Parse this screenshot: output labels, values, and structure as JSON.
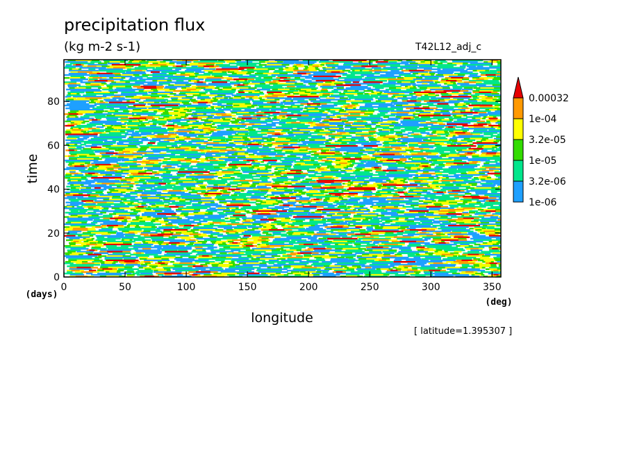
{
  "figure": {
    "title": "precipitation flux",
    "units": "(kg m-2 s-1)",
    "run_id": "T42L12_adj_c",
    "annotation": "[ latitude=1.395307 ]"
  },
  "chart_data": {
    "type": "heatmap",
    "title": "precipitation flux",
    "units": "(kg m-2 s-1)",
    "xlabel": "longitude",
    "ylabel": "time",
    "x_unit_label": "(deg)",
    "y_unit_label": "(days)",
    "xlim": [
      0,
      357.1875
    ],
    "ylim": [
      0,
      99
    ],
    "x_ticks": [
      0,
      50,
      100,
      150,
      200,
      250,
      300,
      350
    ],
    "y_ticks": [
      0,
      20,
      40,
      60,
      80
    ],
    "x_tick_labels": [
      "0",
      "50",
      "100",
      "150",
      "200",
      "250",
      "300",
      "350"
    ],
    "y_tick_labels": [
      "0",
      "20",
      "40",
      "60",
      "80"
    ],
    "grid": false,
    "colorbar": {
      "position": "right",
      "levels": [
        "1e-06",
        "3.2e-06",
        "1e-05",
        "3.2e-05",
        "1e-04",
        "0.00032"
      ],
      "colors": [
        "#ffffff",
        "#1ea0ff",
        "#00e68c",
        "#32dc00",
        "#ffff00",
        "#ff9900",
        "#e60000"
      ],
      "extend": "max"
    },
    "field_note": "noisy zonal streaks of precipitation flux; data grid not individually readable"
  }
}
